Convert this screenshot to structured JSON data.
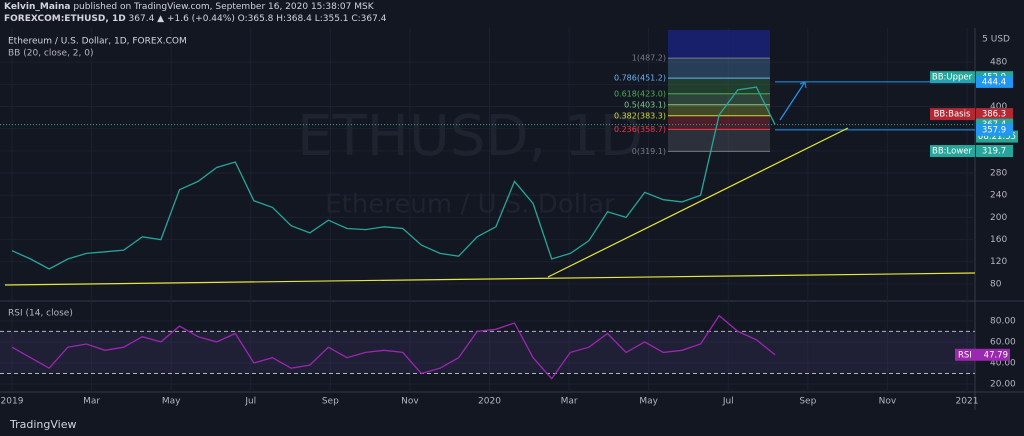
{
  "header": {
    "author": "Kelvin_Maina",
    "published": "published on TradingView.com, September 16, 2020 15:38:07 MSK",
    "symbol": "FOREXCOM:ETHUSD, 1D",
    "quote": "367.4 ▲ +1.6 (+0.44%) O:365.8 H:368.4 L:355.1 C:367.4"
  },
  "footer": {
    "brand": "TradingView"
  },
  "chart_data": [
    {
      "type": "line",
      "title": "Ethereum / U.S. Dollar, 1D, FOREX.COM",
      "indicator": "BB (20, close, 2, 0)",
      "watermark": "ETHUSD, 1D",
      "watermark_sub": "Ethereum / U.S. Dollar",
      "unit_label": "5 USD",
      "color": "#26a69a",
      "values": [
        140,
        125,
        107,
        125,
        135,
        138,
        141,
        165,
        160,
        250,
        265,
        290,
        300,
        230,
        218,
        185,
        172,
        195,
        180,
        178,
        183,
        180,
        150,
        135,
        130,
        165,
        183,
        265,
        225,
        125,
        135,
        158,
        210,
        200,
        245,
        232,
        228,
        240,
        385,
        430,
        435,
        367.4
      ],
      "ylim": [
        51,
        538
      ],
      "yticks": [
        80,
        120,
        160,
        200,
        240,
        280,
        320,
        360,
        400,
        440,
        480
      ],
      "grid": true,
      "xtick_labels": [
        "2019",
        "Mar",
        "May",
        "Jul",
        "Sep",
        "Nov",
        "2020",
        "Mar",
        "May",
        "Jul",
        "Sep",
        "Nov",
        "2021"
      ],
      "fib_levels": [
        {
          "value": 487.2,
          "label": "1(487.2)",
          "color": "#787b86"
        },
        {
          "value": 451.2,
          "label": "0.786(451.2)",
          "color": "#64b5f6"
        },
        {
          "value": 423.0,
          "label": "0.618(423.0)",
          "color": "#4caf50"
        },
        {
          "value": 403.1,
          "label": "0.5(403.1)",
          "color": "#81c784"
        },
        {
          "value": 383.3,
          "label": "0.382(383.3)",
          "color": "#cddc39"
        },
        {
          "value": 358.7,
          "label": "0.236(358.7)",
          "color": "#f23645"
        },
        {
          "value": 319.1,
          "label": "0(319.1)",
          "color": "#787b86"
        }
      ],
      "price_labels": [
        {
          "name": "BB:Upper",
          "value": 452.9,
          "color": "#26a69a"
        },
        {
          "value": 444.4,
          "color": "#2196f3"
        },
        {
          "name": "BB:Basis",
          "value": 386.3,
          "color": "#b22833"
        },
        {
          "value": 367.4,
          "countdown": "08:21:55",
          "color": "#26a69a"
        },
        {
          "value": 357.9,
          "color": "#2196f3"
        },
        {
          "name": "BB:Lower",
          "value": 319.7,
          "color": "#26a69a"
        }
      ]
    },
    {
      "type": "line",
      "title": "RSI (14, close)",
      "color": "#9c27b0",
      "label_name": "RSI",
      "values": [
        55,
        45,
        35,
        55,
        58,
        52,
        55,
        65,
        60,
        75,
        65,
        60,
        68,
        40,
        45,
        35,
        38,
        55,
        45,
        50,
        52,
        50,
        30,
        35,
        45,
        70,
        72,
        78,
        45,
        25,
        50,
        55,
        68,
        50,
        60,
        50,
        52,
        58,
        85,
        70,
        62,
        47.79
      ],
      "ylim": [
        14.3,
        97
      ],
      "yticks": [
        {
          "value": 20,
          "label": "20.00"
        },
        {
          "value": 40,
          "label": "40.00"
        },
        {
          "value": 60,
          "label": "60.00"
        },
        {
          "value": 80,
          "label": "80.00"
        }
      ],
      "bands": [
        30,
        70
      ]
    }
  ]
}
